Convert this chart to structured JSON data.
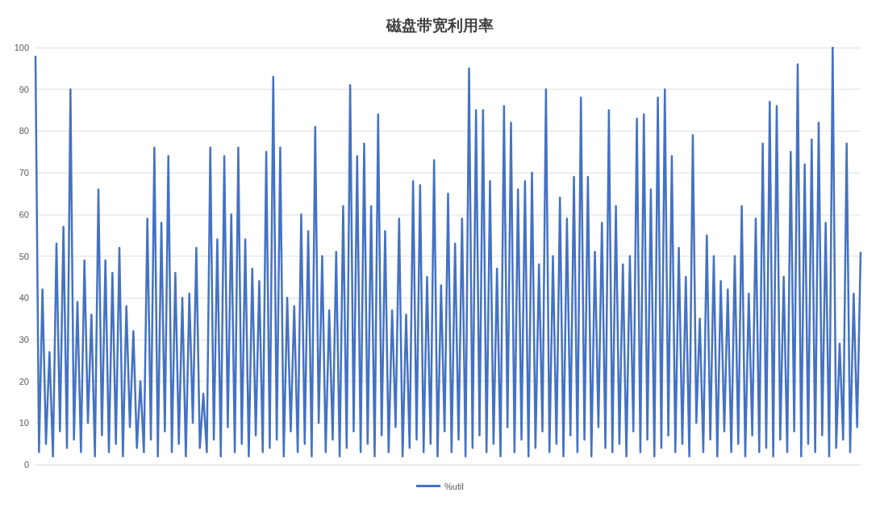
{
  "chart_data": {
    "type": "line",
    "title": "磁盘带宽利用率",
    "categories": [
      null,
      null,
      null,
      null,
      null,
      null,
      null,
      null,
      null,
      null,
      null,
      null,
      null,
      null,
      null,
      null,
      null,
      null,
      null,
      null,
      null,
      null,
      null,
      null,
      null,
      null,
      null,
      null,
      null,
      null,
      null,
      null,
      null,
      null,
      null,
      null,
      null,
      null,
      null,
      null,
      null,
      null,
      null,
      null,
      null,
      null,
      null,
      null,
      null,
      null,
      null,
      null,
      null,
      null,
      null,
      null,
      null,
      null,
      null,
      null,
      null,
      null,
      null,
      null,
      null,
      null,
      null,
      null,
      null,
      null,
      null,
      null,
      null,
      null,
      null,
      null,
      null,
      null,
      null,
      null,
      null,
      null,
      null,
      null,
      null,
      null,
      null,
      null,
      null,
      null,
      null,
      null,
      null,
      null,
      null,
      null,
      null,
      null,
      null,
      null,
      null,
      null,
      null,
      null,
      null,
      null,
      null,
      null,
      null,
      null,
      null,
      null,
      null,
      null,
      null,
      null,
      null,
      null,
      null,
      null,
      null,
      null,
      null,
      null,
      null,
      null,
      null,
      null,
      null,
      null,
      null,
      null,
      null,
      null,
      null,
      null,
      null,
      null,
      null,
      null,
      null,
      null,
      null,
      null,
      null,
      null,
      null,
      null,
      null,
      null,
      null,
      null,
      null,
      null,
      null,
      null,
      null,
      null,
      null,
      null,
      null,
      null,
      null,
      null,
      null,
      null,
      null,
      null,
      null,
      null,
      null,
      null,
      null,
      null,
      null,
      null,
      null,
      null,
      null,
      null,
      null,
      null,
      null,
      null,
      null,
      null,
      null,
      null,
      null,
      null,
      null,
      null,
      null,
      null,
      null,
      null,
      null,
      null,
      null,
      null,
      null,
      null,
      null,
      null,
      null,
      null,
      null,
      null,
      null,
      null,
      null,
      null,
      null,
      null,
      null,
      null,
      null,
      null,
      null,
      null,
      null,
      null,
      null,
      null,
      null,
      null,
      null,
      null,
      null,
      null,
      null,
      null,
      null,
      null,
      null,
      null,
      null
    ],
    "series": [
      {
        "name": "%util",
        "color": "#4472c4",
        "values": [
          98,
          3,
          42,
          5,
          27,
          2,
          53,
          8,
          57,
          4,
          90,
          6,
          39,
          3,
          49,
          10,
          36,
          2,
          66,
          7,
          49,
          3,
          46,
          5,
          52,
          2,
          38,
          9,
          32,
          4,
          20,
          3,
          59,
          6,
          76,
          2,
          58,
          8,
          74,
          3,
          46,
          5,
          40,
          2,
          41,
          10,
          52,
          4,
          17,
          3,
          76,
          6,
          54,
          2,
          74,
          9,
          60,
          3,
          76,
          5,
          54,
          2,
          47,
          7,
          44,
          3,
          75,
          4,
          93,
          6,
          76,
          2,
          40,
          8,
          38,
          3,
          60,
          5,
          56,
          2,
          81,
          10,
          50,
          3,
          37,
          6,
          51,
          2,
          62,
          4,
          91,
          8,
          74,
          3,
          77,
          5,
          62,
          2,
          84,
          7,
          56,
          3,
          37,
          9,
          59,
          2,
          36,
          4,
          68,
          6,
          67,
          3,
          45,
          5,
          73,
          2,
          43,
          8,
          65,
          3,
          53,
          6,
          59,
          2,
          95,
          4,
          85,
          7,
          85,
          3,
          68,
          5,
          47,
          2,
          86,
          9,
          82,
          3,
          66,
          6,
          68,
          2,
          70,
          4,
          48,
          8,
          90,
          3,
          50,
          5,
          64,
          2,
          59,
          7,
          69,
          3,
          88,
          6,
          69,
          2,
          51,
          9,
          58,
          4,
          85,
          3,
          62,
          5,
          48,
          2,
          50,
          8,
          83,
          3,
          84,
          6,
          66,
          2,
          88,
          4,
          90,
          7,
          74,
          3,
          52,
          5,
          45,
          2,
          79,
          10,
          35,
          3,
          55,
          6,
          50,
          2,
          44,
          8,
          42,
          3,
          50,
          5,
          62,
          2,
          41,
          7,
          59,
          3,
          77,
          4,
          87,
          2,
          86,
          6,
          45,
          3,
          75,
          8,
          96,
          2,
          72,
          5,
          78,
          3,
          82,
          7,
          58,
          2,
          100,
          4,
          29,
          6,
          77,
          3,
          41,
          9,
          51
        ]
      }
    ],
    "ylim": [
      0,
      100
    ],
    "yticks": [
      0,
      10,
      20,
      30,
      40,
      50,
      60,
      70,
      80,
      90,
      100
    ],
    "grid": "y",
    "legend": "bottom",
    "line_style": "solid",
    "tick_labels": "y"
  }
}
